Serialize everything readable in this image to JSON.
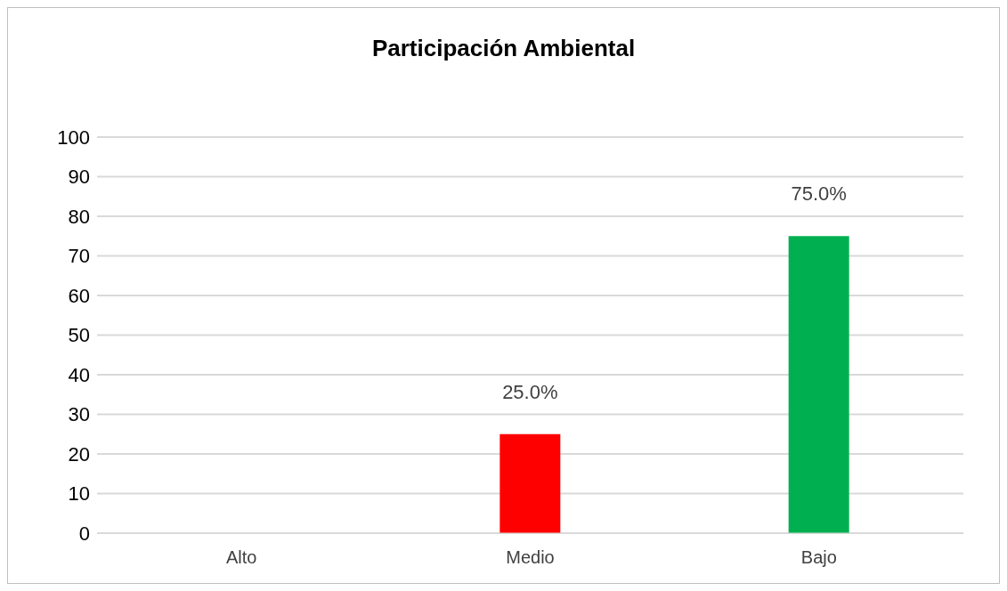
{
  "chart_data": {
    "type": "bar",
    "title": "Participación Ambiental",
    "categories": [
      "Alto",
      "Medio",
      "Bajo"
    ],
    "values": [
      0,
      25,
      75
    ],
    "colors": [
      "#1f3347",
      "#ff0000",
      "#00b050"
    ],
    "value_labels": [
      null,
      "25.0%",
      "75.0%"
    ],
    "ylim": [
      0,
      100
    ],
    "yticks": [
      0,
      10,
      20,
      30,
      40,
      50,
      60,
      70,
      80,
      90,
      100
    ],
    "grid": "y"
  }
}
